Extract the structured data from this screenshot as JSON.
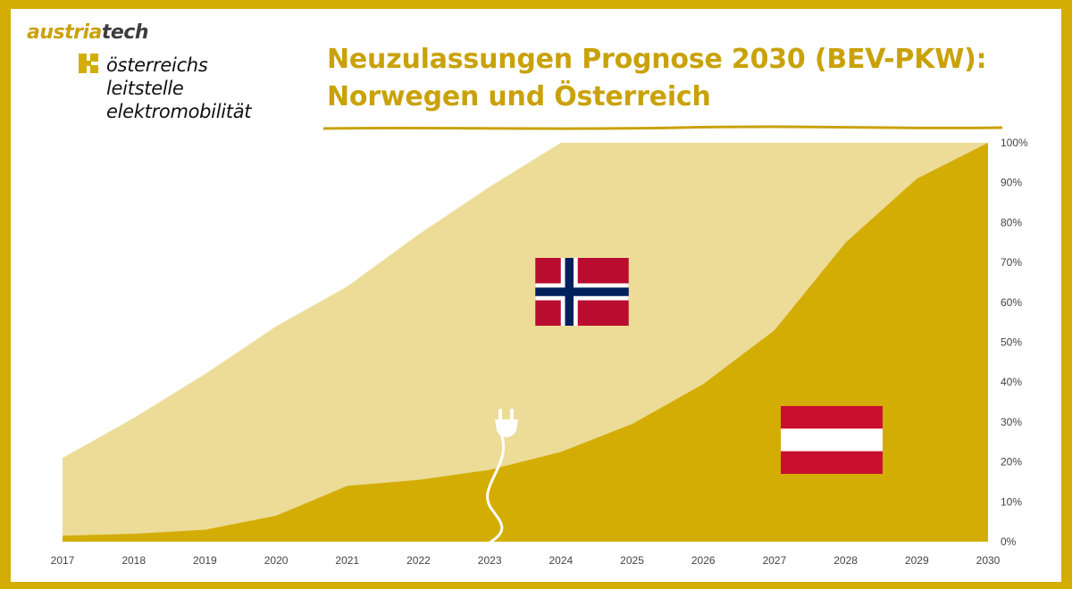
{
  "header": {
    "brand_part1": "austria",
    "brand_part2": "tech",
    "tagline_line1": "österreichs",
    "tagline_line2": "leitstelle",
    "tagline_line3": "elektromobilität",
    "title_line1": "Neuzulassungen Prognose 2030 (BEV-PKW):",
    "title_line2": "Norwegen und Österreich"
  },
  "colors": {
    "frame": "#d4ad04",
    "title": "#c9a20a",
    "norway_area": "#ecdc98",
    "austria_area": "#d4ad04",
    "flag_red": "#ba0c2f",
    "flag_blue": "#00205b"
  },
  "icons": [
    "plus-icon",
    "plug-icon",
    "norway-flag-icon",
    "austria-flag-icon"
  ],
  "chart_data": {
    "type": "area",
    "title": "Neuzulassungen Prognose 2030 (BEV-PKW): Norwegen und Österreich",
    "x": [
      "2017",
      "2018",
      "2019",
      "2020",
      "2021",
      "2022",
      "2023",
      "2024",
      "2025",
      "2026",
      "2027",
      "2028",
      "2029",
      "2030"
    ],
    "series": [
      {
        "legend_icon": "norway-flag-icon",
        "color": "#ecdc98",
        "values": [
          21,
          31,
          42,
          54,
          64,
          77,
          89,
          100,
          100,
          100,
          100,
          100,
          100,
          100
        ]
      },
      {
        "legend_icon": "austria-flag-icon",
        "color": "#d4ad04",
        "values": [
          1.5,
          2,
          3,
          6.5,
          14,
          15.5,
          18,
          22.5,
          29.5,
          39.5,
          53,
          75,
          91,
          100
        ]
      }
    ],
    "y_ticks": [
      "0%",
      "10%",
      "20%",
      "30%",
      "40%",
      "50%",
      "60%",
      "70%",
      "80%",
      "90%",
      "100%"
    ],
    "ylim": [
      0,
      100
    ],
    "y_axis_side": "right",
    "grid": false,
    "overlap": true
  }
}
